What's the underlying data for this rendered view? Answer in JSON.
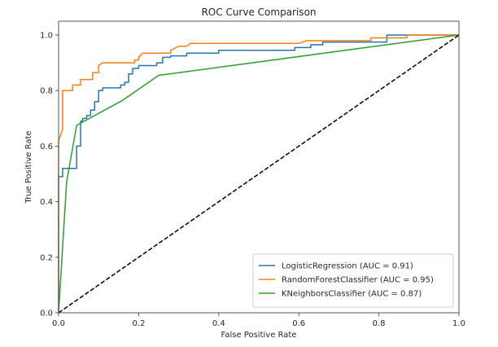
{
  "chart_data": {
    "type": "line",
    "title": "ROC Curve Comparison",
    "xlabel": "False Positive Rate",
    "ylabel": "True Positive Rate",
    "xlim": [
      0,
      1.0
    ],
    "ylim": [
      0,
      1.05
    ],
    "xticks": [
      0.0,
      0.2,
      0.4,
      0.6,
      0.8,
      1.0
    ],
    "xtick_labels": [
      "0.0",
      "0.2",
      "0.4",
      "0.6",
      "0.8",
      "1.0"
    ],
    "yticks": [
      0.0,
      0.2,
      0.4,
      0.6,
      0.8,
      1.0
    ],
    "ytick_labels": [
      "0.0",
      "0.2",
      "0.4",
      "0.6",
      "0.8",
      "1.0"
    ],
    "grid": false,
    "legend_position": "lower-right",
    "series": [
      {
        "name": "LogisticRegression (AUC = 0.91)",
        "color": "#1f77b4",
        "points": [
          [
            0.0,
            0.0
          ],
          [
            0.0,
            0.49
          ],
          [
            0.01,
            0.49
          ],
          [
            0.01,
            0.52
          ],
          [
            0.045,
            0.52
          ],
          [
            0.045,
            0.6
          ],
          [
            0.055,
            0.6
          ],
          [
            0.055,
            0.69
          ],
          [
            0.06,
            0.69
          ],
          [
            0.06,
            0.7
          ],
          [
            0.07,
            0.7
          ],
          [
            0.07,
            0.71
          ],
          [
            0.08,
            0.71
          ],
          [
            0.08,
            0.73
          ],
          [
            0.09,
            0.73
          ],
          [
            0.09,
            0.76
          ],
          [
            0.1,
            0.76
          ],
          [
            0.1,
            0.8
          ],
          [
            0.11,
            0.8
          ],
          [
            0.11,
            0.81
          ],
          [
            0.155,
            0.81
          ],
          [
            0.155,
            0.82
          ],
          [
            0.165,
            0.82
          ],
          [
            0.165,
            0.83
          ],
          [
            0.175,
            0.83
          ],
          [
            0.175,
            0.86
          ],
          [
            0.185,
            0.86
          ],
          [
            0.185,
            0.88
          ],
          [
            0.2,
            0.88
          ],
          [
            0.2,
            0.89
          ],
          [
            0.245,
            0.89
          ],
          [
            0.245,
            0.9
          ],
          [
            0.26,
            0.9
          ],
          [
            0.26,
            0.92
          ],
          [
            0.28,
            0.92
          ],
          [
            0.28,
            0.925
          ],
          [
            0.32,
            0.925
          ],
          [
            0.32,
            0.935
          ],
          [
            0.4,
            0.935
          ],
          [
            0.4,
            0.945
          ],
          [
            0.59,
            0.945
          ],
          [
            0.59,
            0.955
          ],
          [
            0.63,
            0.955
          ],
          [
            0.63,
            0.965
          ],
          [
            0.66,
            0.965
          ],
          [
            0.66,
            0.975
          ],
          [
            0.82,
            0.975
          ],
          [
            0.82,
            1.0
          ],
          [
            1.0,
            1.0
          ]
        ]
      },
      {
        "name": "RandomForestClassifier (AUC = 0.95)",
        "color": "#ff7f0e",
        "points": [
          [
            0.0,
            0.0
          ],
          [
            0.0,
            0.62
          ],
          [
            0.01,
            0.66
          ],
          [
            0.01,
            0.8
          ],
          [
            0.035,
            0.8
          ],
          [
            0.035,
            0.82
          ],
          [
            0.055,
            0.82
          ],
          [
            0.055,
            0.84
          ],
          [
            0.085,
            0.84
          ],
          [
            0.085,
            0.865
          ],
          [
            0.1,
            0.865
          ],
          [
            0.1,
            0.89
          ],
          [
            0.11,
            0.9
          ],
          [
            0.19,
            0.9
          ],
          [
            0.19,
            0.91
          ],
          [
            0.2,
            0.91
          ],
          [
            0.2,
            0.92
          ],
          [
            0.21,
            0.935
          ],
          [
            0.28,
            0.935
          ],
          [
            0.28,
            0.945
          ],
          [
            0.3,
            0.96
          ],
          [
            0.32,
            0.96
          ],
          [
            0.33,
            0.97
          ],
          [
            0.6,
            0.97
          ],
          [
            0.62,
            0.98
          ],
          [
            0.78,
            0.98
          ],
          [
            0.78,
            0.99
          ],
          [
            0.87,
            0.99
          ],
          [
            0.87,
            1.0
          ],
          [
            1.0,
            1.0
          ]
        ]
      },
      {
        "name": "KNeighborsClassifier (AUC = 0.87)",
        "color": "#2ca02c",
        "points": [
          [
            0.0,
            0.0
          ],
          [
            0.02,
            0.47
          ],
          [
            0.045,
            0.675
          ],
          [
            0.16,
            0.765
          ],
          [
            0.25,
            0.855
          ],
          [
            1.0,
            1.0
          ]
        ]
      },
      {
        "name": "Chance",
        "color": "#000000",
        "dashed": true,
        "in_legend": false,
        "points": [
          [
            0.0,
            0.0
          ],
          [
            1.0,
            1.0
          ]
        ]
      }
    ]
  }
}
